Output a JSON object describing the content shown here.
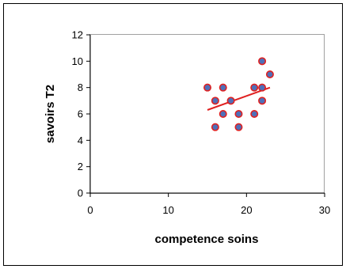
{
  "chart_data": {
    "type": "scatter",
    "title": "",
    "xlabel": "competence soins",
    "ylabel": "savoirs T2",
    "xlim": [
      0,
      30
    ],
    "ylim": [
      0,
      12
    ],
    "xticks": [
      0,
      10,
      20,
      30
    ],
    "yticks": [
      0,
      2,
      4,
      6,
      8,
      10,
      12
    ],
    "grid": false,
    "legend": "none",
    "points": [
      {
        "x": 15,
        "y": 8
      },
      {
        "x": 16,
        "y": 7
      },
      {
        "x": 16,
        "y": 5
      },
      {
        "x": 17,
        "y": 8
      },
      {
        "x": 17,
        "y": 6
      },
      {
        "x": 18,
        "y": 7
      },
      {
        "x": 19,
        "y": 6
      },
      {
        "x": 19,
        "y": 5
      },
      {
        "x": 21,
        "y": 8
      },
      {
        "x": 21,
        "y": 6
      },
      {
        "x": 22,
        "y": 10
      },
      {
        "x": 22,
        "y": 8
      },
      {
        "x": 22,
        "y": 7
      },
      {
        "x": 23,
        "y": 9
      }
    ],
    "trendline": {
      "x": [
        15,
        23
      ],
      "y": [
        6.3,
        8.0
      ]
    },
    "colors": {
      "marker_fill": "#4f6fb8",
      "marker_edge": "#e02020",
      "trendline": "#e02020",
      "frame": "#000000",
      "plot_border": "#a0a0a0"
    }
  }
}
